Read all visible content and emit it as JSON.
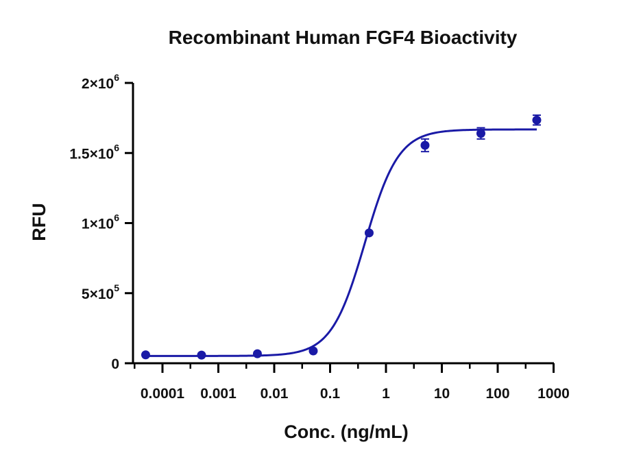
{
  "chart_data": {
    "type": "scatter",
    "title": "Recombinant Human FGF4 Bioactivity",
    "xlabel": "Conc. (ng/mL)",
    "ylabel": "RFU",
    "x_scale": "log",
    "xlim": [
      0.0001,
      1000
    ],
    "ylim": [
      0,
      2000000
    ],
    "x_ticks": [
      {
        "value": 0.0001,
        "label": "0.0001"
      },
      {
        "value": 0.001,
        "label": "0.001"
      },
      {
        "value": 0.01,
        "label": "0.01"
      },
      {
        "value": 0.1,
        "label": "0.1"
      },
      {
        "value": 1,
        "label": "1"
      },
      {
        "value": 10,
        "label": "10"
      },
      {
        "value": 100,
        "label": "100"
      },
      {
        "value": 1000,
        "label": "1000"
      }
    ],
    "y_ticks": [
      {
        "value": 0,
        "base": "0",
        "exp": ""
      },
      {
        "value": 500000,
        "base": "5×10",
        "exp": "5"
      },
      {
        "value": 1000000,
        "base": "1×10",
        "exp": "6"
      },
      {
        "value": 1500000,
        "base": "1.5×10",
        "exp": "6"
      },
      {
        "value": 2000000,
        "base": "2×10",
        "exp": "6"
      }
    ],
    "grid": false,
    "legend": "none",
    "color": "#1a1aa6",
    "series": [
      {
        "points": [
          {
            "x": 5e-05,
            "y": 60000,
            "err": 0
          },
          {
            "x": 0.0005,
            "y": 58000,
            "err": 0
          },
          {
            "x": 0.005,
            "y": 68000,
            "err": 0
          },
          {
            "x": 0.05,
            "y": 88000,
            "err": 0
          },
          {
            "x": 0.5,
            "y": 930000,
            "err": 0
          },
          {
            "x": 5,
            "y": 1555000,
            "err": 45000
          },
          {
            "x": 50,
            "y": 1640000,
            "err": 40000
          },
          {
            "x": 500,
            "y": 1735000,
            "err": 35000
          }
        ],
        "fit": {
          "model": "4PL",
          "bottom": 52000,
          "top": 1668000,
          "ec50": 0.42,
          "hill": 1.45
        }
      }
    ]
  }
}
